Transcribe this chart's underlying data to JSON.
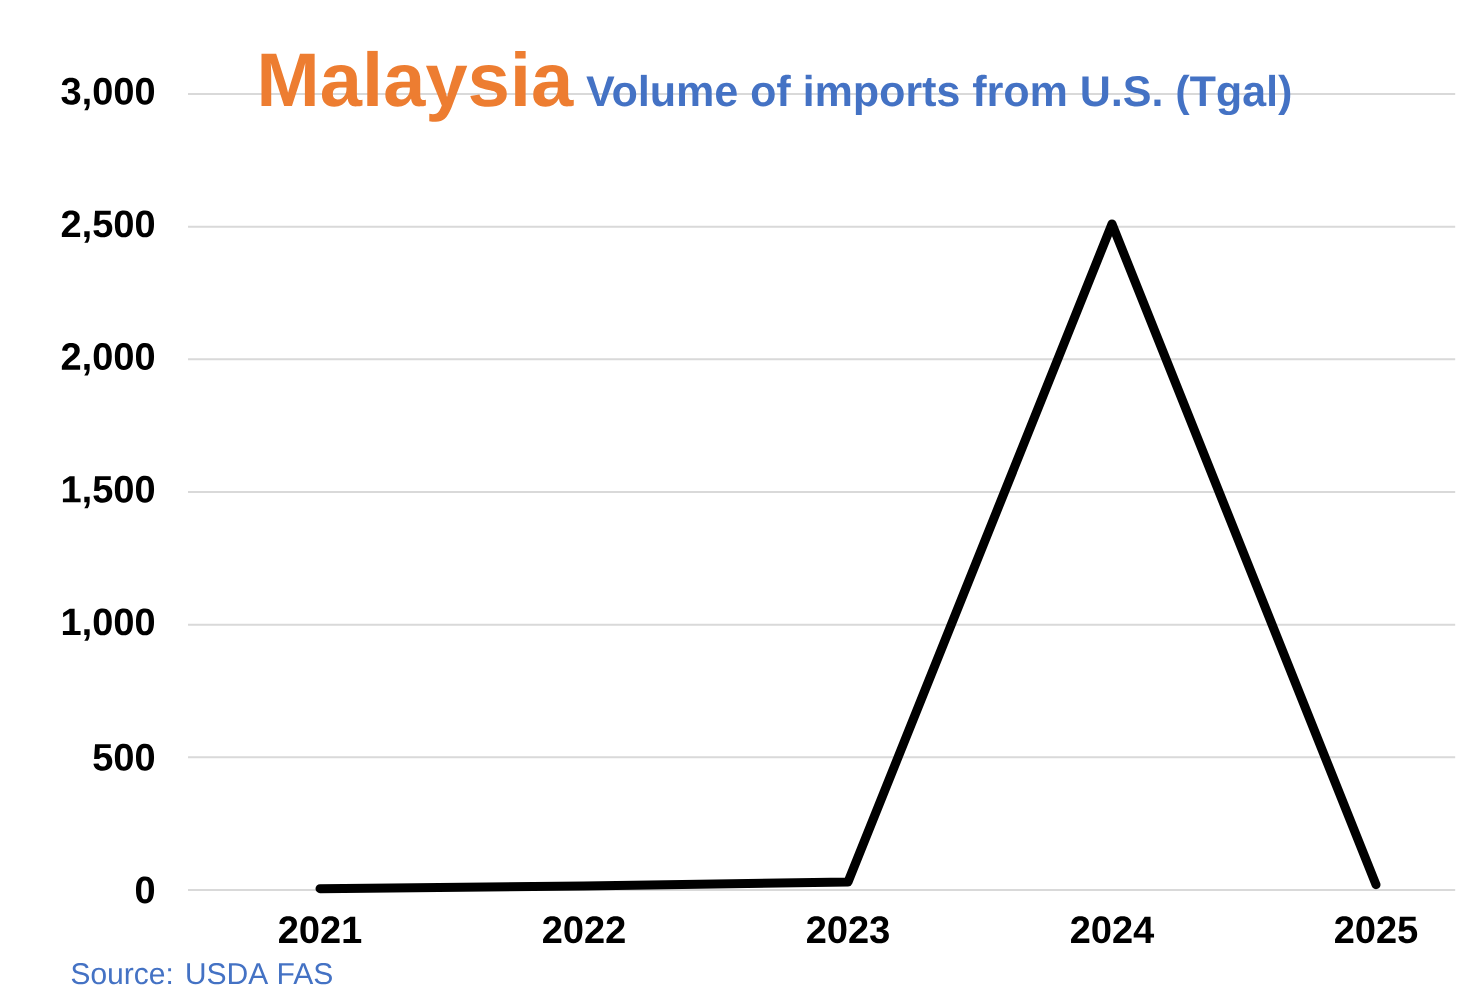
{
  "chart_data": {
    "type": "line",
    "title": "Malaysia",
    "subtitle": "Volume of imports from U.S. (Tgal)",
    "categories": [
      "2021",
      "2022",
      "2023",
      "2024",
      "2025"
    ],
    "series": [
      {
        "color": "#000000",
        "values": [
          5,
          15,
          30,
          2510,
          20
        ]
      }
    ],
    "ylim": [
      0,
      3000
    ],
    "yticks": [
      0,
      500,
      {
        "value": 1000,
        "label": "1,000"
      },
      {
        "value": 1500,
        "label": "1,500"
      },
      {
        "value": 2000,
        "label": "2,000"
      },
      {
        "value": 2500,
        "label": "2,500"
      },
      {
        "value": 3000,
        "label": "3,000"
      }
    ],
    "grid": "y",
    "marker": "none",
    "line_style": "solid",
    "annotations": [
      "Source: USDA FAS"
    ]
  }
}
